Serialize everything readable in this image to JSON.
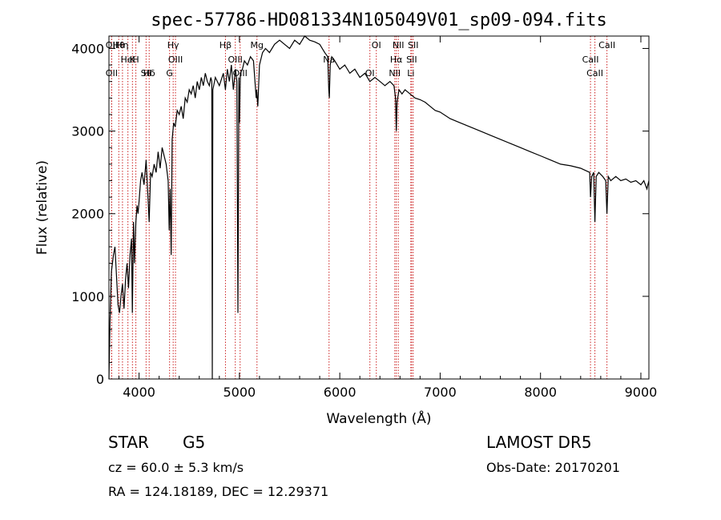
{
  "chart_data": {
    "type": "line",
    "title": "spec-57786-HD081334N105049V01_sp09-094.fits",
    "xlabel": "Wavelength (Å)",
    "ylabel": "Flux (relative)",
    "xlim": [
      3700,
      9080
    ],
    "ylim": [
      0,
      4150
    ],
    "xticks": [
      4000,
      5000,
      6000,
      7000,
      8000,
      9000
    ],
    "xtick_labels": [
      "4000",
      "5000",
      "6000",
      "7000",
      "8000",
      "9000"
    ],
    "yticks": [
      0,
      1000,
      2000,
      3000,
      4000
    ],
    "ytick_labels": [
      "0",
      "1000",
      "2000",
      "3000",
      "4000"
    ],
    "grid": false,
    "line_color": "#000000",
    "marker_line_color": "#cc2222",
    "series": [
      {
        "x": [
          3700,
          3710,
          3725,
          3745,
          3760,
          3775,
          3790,
          3805,
          3820,
          3835,
          3850,
          3865,
          3880,
          3895,
          3910,
          3925,
          3933,
          3945,
          3955,
          3968,
          3980,
          3990,
          4000,
          4015,
          4030,
          4050,
          4070,
          4085,
          4101,
          4115,
          4130,
          4150,
          4170,
          4190,
          4210,
          4230,
          4250,
          4270,
          4290,
          4300,
          4310,
          4320,
          4330,
          4345,
          4360,
          4380,
          4400,
          4420,
          4440,
          4460,
          4480,
          4500,
          4520,
          4540,
          4560,
          4580,
          4600,
          4620,
          4640,
          4660,
          4680,
          4700,
          4715,
          4725,
          4730,
          4735,
          4760,
          4800,
          4840,
          4861,
          4880,
          4900,
          4920,
          4940,
          4960,
          4975,
          4985,
          4995,
          5000,
          5010,
          5030,
          5050,
          5080,
          5110,
          5140,
          5167,
          5172,
          5183,
          5200,
          5230,
          5260,
          5300,
          5350,
          5400,
          5450,
          5500,
          5550,
          5600,
          5650,
          5700,
          5750,
          5800,
          5850,
          5880,
          5890,
          5896,
          5905,
          5920,
          5950,
          6000,
          6050,
          6100,
          6150,
          6200,
          6250,
          6300,
          6350,
          6400,
          6450,
          6500,
          6540,
          6555,
          6563,
          6570,
          6590,
          6620,
          6650,
          6700,
          6750,
          6800,
          6850,
          6900,
          6950,
          7000,
          7100,
          7200,
          7300,
          7400,
          7500,
          7600,
          7700,
          7800,
          7900,
          8000,
          8100,
          8200,
          8300,
          8400,
          8490,
          8498,
          8510,
          8530,
          8542,
          8555,
          8580,
          8620,
          8650,
          8662,
          8675,
          8700,
          8750,
          8800,
          8850,
          8900,
          8950,
          9000,
          9030,
          9060,
          9080
        ],
        "y": [
          0,
          700,
          1300,
          1500,
          1600,
          1250,
          900,
          800,
          1000,
          1150,
          850,
          1200,
          1400,
          1100,
          1500,
          1700,
          800,
          1900,
          1400,
          1900,
          2100,
          2000,
          2150,
          2400,
          2500,
          2350,
          2650,
          2300,
          1900,
          2500,
          2450,
          2600,
          2500,
          2750,
          2550,
          2800,
          2700,
          2600,
          2400,
          1800,
          2300,
          1500,
          2900,
          3100,
          3050,
          3250,
          3200,
          3300,
          3150,
          3400,
          3350,
          3500,
          3450,
          3550,
          3400,
          3600,
          3500,
          3650,
          3550,
          3700,
          3600,
          3550,
          3650,
          3600,
          0,
          3500,
          3650,
          3550,
          3700,
          3500,
          3750,
          3600,
          3800,
          3500,
          3750,
          3600,
          800,
          3650,
          3100,
          3700,
          3750,
          3850,
          3800,
          3900,
          3850,
          3400,
          3500,
          3300,
          3800,
          3950,
          4000,
          3950,
          4050,
          4100,
          4050,
          4000,
          4100,
          4050,
          4150,
          4100,
          4080,
          4050,
          3950,
          3900,
          3500,
          3400,
          3800,
          3900,
          3850,
          3750,
          3800,
          3700,
          3750,
          3650,
          3700,
          3600,
          3650,
          3600,
          3550,
          3600,
          3550,
          3400,
          3000,
          3350,
          3500,
          3450,
          3500,
          3450,
          3400,
          3380,
          3350,
          3300,
          3250,
          3230,
          3150,
          3100,
          3050,
          3000,
          2950,
          2900,
          2850,
          2800,
          2750,
          2700,
          2650,
          2600,
          2580,
          2550,
          2500,
          2200,
          2450,
          2500,
          1900,
          2450,
          2500,
          2450,
          2400,
          2000,
          2450,
          2400,
          2450,
          2400,
          2420,
          2380,
          2400,
          2350,
          2400,
          2300,
          2400
        ]
      }
    ],
    "line_markers": [
      {
        "label": "Hθ",
        "x": 3798
      },
      {
        "label": "K",
        "x": 3934
      },
      {
        "label": "Hδ",
        "x": 4101
      },
      {
        "label": "OII",
        "x": 3727
      },
      {
        "label": "HeI",
        "x": 3889
      },
      {
        "label": "SII",
        "x": 4070
      },
      {
        "label": "Hγ",
        "x": 4340
      },
      {
        "label": "OIII",
        "x": 4363
      },
      {
        "label": "OII",
        "x": 3727
      },
      {
        "label": "Hη",
        "x": 3835
      },
      {
        "label": "H",
        "x": 3968
      },
      {
        "label": "G",
        "x": 4304
      },
      {
        "label": "Hβ",
        "x": 4861
      },
      {
        "label": "OIII",
        "x": 4959
      },
      {
        "label": "OIII",
        "x": 5007
      },
      {
        "label": "Mg",
        "x": 5175
      },
      {
        "label": "Na",
        "x": 5893
      },
      {
        "label": "OI",
        "x": 6300
      },
      {
        "label": "OI",
        "x": 6364
      },
      {
        "label": "Hα",
        "x": 6563
      },
      {
        "label": "NII",
        "x": 6548
      },
      {
        "label": "NII",
        "x": 6583
      },
      {
        "label": "SII",
        "x": 6716
      },
      {
        "label": "Li",
        "x": 6708
      },
      {
        "label": "SII",
        "x": 6731
      },
      {
        "label": "CaII",
        "x": 8498
      },
      {
        "label": "CaII",
        "x": 8542
      },
      {
        "label": "CaII",
        "x": 8662
      }
    ]
  },
  "info": {
    "object_class": "STAR",
    "subclass": "G5",
    "survey": "LAMOST DR5",
    "cz": "cz = 60.0 ± 5.3 km/s",
    "obs_date": "Obs-Date: 20170201",
    "coords": "RA = 124.18189, DEC =  12.29371"
  }
}
